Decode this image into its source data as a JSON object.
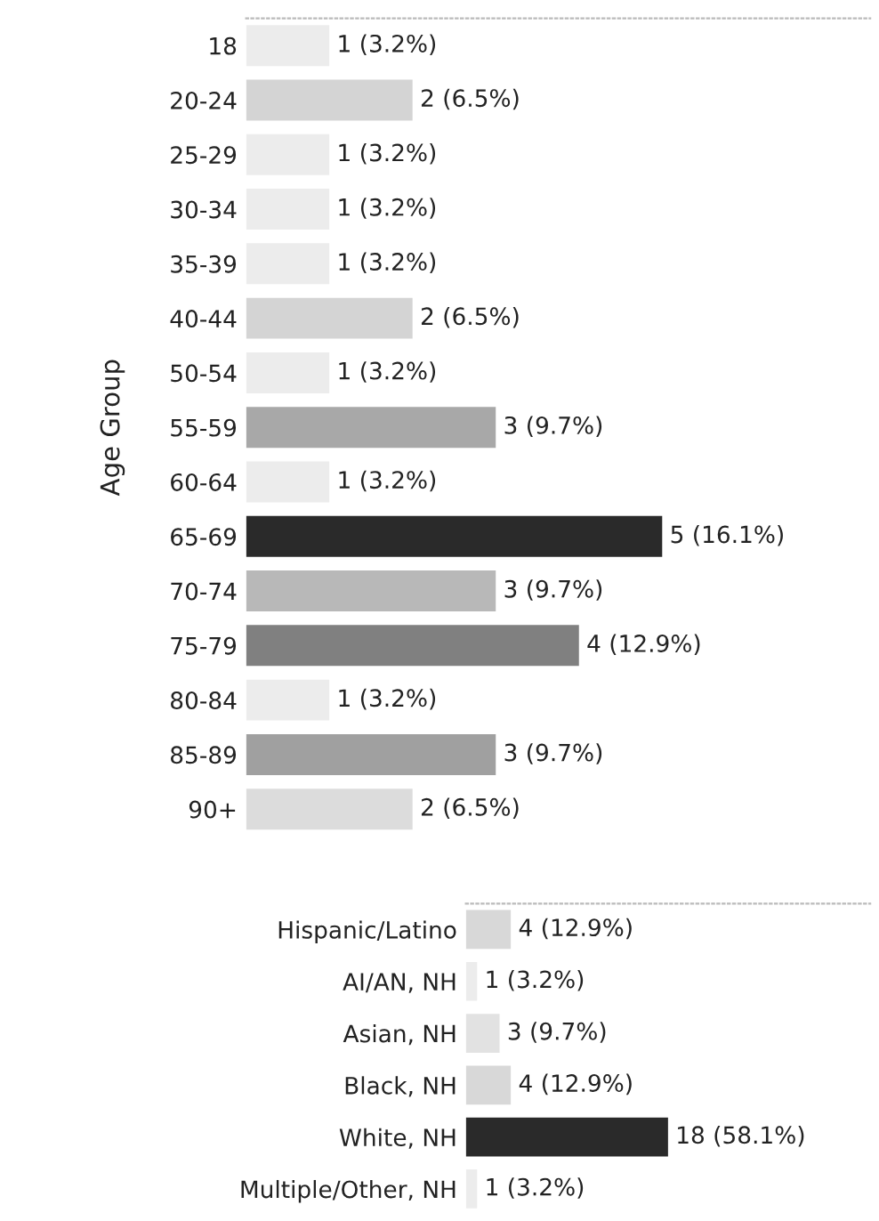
{
  "chart_data": [
    {
      "type": "bar",
      "orientation": "horizontal",
      "ylabel": "Age Group",
      "tick_labels": "y",
      "categories": [
        "18",
        "20-24",
        "25-29",
        "30-34",
        "35-39",
        "40-44",
        "50-54",
        "55-59",
        "60-64",
        "65-69",
        "70-74",
        "75-79",
        "80-84",
        "85-89",
        "90+"
      ],
      "values": [
        1,
        2,
        1,
        1,
        1,
        2,
        1,
        3,
        1,
        5,
        3,
        4,
        1,
        3,
        2
      ],
      "colors": [
        "#ececec",
        "#d4d4d4",
        "#ececec",
        "#ececec",
        "#ececec",
        "#d4d4d4",
        "#ececec",
        "#a8a8a8",
        "#ececec",
        "#2a2a2a",
        "#b8b8b8",
        "#808080",
        "#ececec",
        "#a0a0a0",
        "#dcdcdc"
      ],
      "value_labels": [
        "1 (3.2%)",
        "2 (6.5%)",
        "1 (3.2%)",
        "1 (3.2%)",
        "1 (3.2%)",
        "2 (6.5%)",
        "1 (3.2%)",
        "3 (9.7%)",
        "1 (3.2%)",
        "5 (16.1%)",
        "3 (9.7%)",
        "4 (12.9%)",
        "1 (3.2%)",
        "3 (9.7%)",
        "2 (6.5%)"
      ],
      "xlim": [
        0,
        7.5
      ]
    },
    {
      "type": "bar",
      "orientation": "horizontal",
      "tick_labels": "y",
      "categories": [
        "Hispanic/Latino",
        "AI/AN, NH",
        "Asian, NH",
        "Black, NH",
        "White, NH",
        "Multiple/Other, NH"
      ],
      "values": [
        4,
        1,
        3,
        4,
        18,
        1
      ],
      "colors": [
        "#d8d8d8",
        "#ececec",
        "#e2e2e2",
        "#d8d8d8",
        "#2a2a2a",
        "#ececec"
      ],
      "value_labels": [
        "4 (12.9%)",
        "1 (3.2%)",
        "3 (9.7%)",
        "4 (12.9%)",
        "18 (58.1%)",
        "1 (3.2%)"
      ],
      "xlim": [
        0,
        36
      ]
    }
  ]
}
